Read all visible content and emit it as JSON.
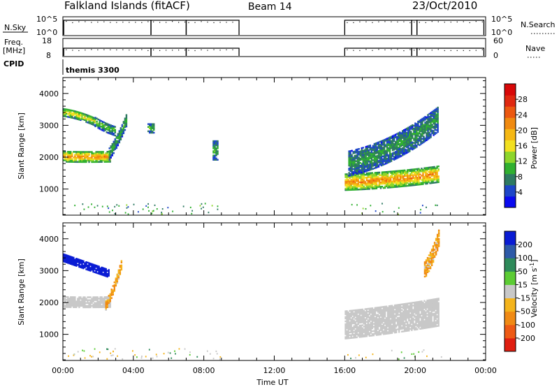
{
  "header": {
    "station": "Falkland Islands (fitACF)",
    "beam": "Beam 14",
    "date": "23/Oct/2010"
  },
  "nsky_panel": {
    "left_label": "N.Sky",
    "left_ticks": [
      "10^5",
      "10^0"
    ],
    "right_label": "N.Search",
    "right_ticks": [
      "10^5",
      "10^0"
    ]
  },
  "freq_panel": {
    "left_label_1": "Freq.",
    "left_label_2": "[MHz]",
    "left_ticks": [
      "18",
      "8"
    ],
    "right_label": "Nave",
    "right_ticks": [
      "60",
      "0"
    ]
  },
  "cpid_panel": {
    "label": "CPID",
    "mode": "themis 3300"
  },
  "x_axis": {
    "label": "Time UT",
    "ticks": [
      "00:00",
      "04:00",
      "08:00",
      "12:00",
      "16:00",
      "20:00",
      "00:00"
    ]
  },
  "power_panel": {
    "ylabel": "Slant Range [km]",
    "yticks": [
      "1000",
      "2000",
      "3000",
      "4000"
    ],
    "cbar_label": "Power [dB]",
    "cbar_ticks": [
      "4",
      "8",
      "12",
      "16",
      "20",
      "24",
      "28"
    ],
    "cbar_colors": [
      "#0a0af0",
      "#1e46c8",
      "#2e7a62",
      "#30b030",
      "#8ed62c",
      "#f2e020",
      "#f5b814",
      "#f08a10",
      "#ec5810",
      "#e02810",
      "#d80808"
    ]
  },
  "velocity_panel": {
    "ylabel": "Slant Range [km]",
    "yticks": [
      "1000",
      "2000",
      "3000",
      "4000"
    ],
    "cbar_label": "Velocity [m s^-1]",
    "cbar_ticks": [
      "200",
      "100",
      "50",
      "15",
      "-15",
      "-50",
      "-100",
      "-200"
    ],
    "cbar_colors": [
      "#0a1cd4",
      "#2e5aa8",
      "#2e8a5a",
      "#5ccc34",
      "#c8c8c8",
      "#f4b41c",
      "#f08a14",
      "#ee5a14",
      "#e01e10"
    ]
  },
  "chart_data": {
    "type": "heatmap",
    "x_range_hours": [
      0,
      24
    ],
    "y_range_km": [
      180,
      4500
    ],
    "data_gaps_hours": [
      [
        10.0,
        16.0
      ]
    ],
    "time_series": {
      "nsky_operating_segments_hours": [
        [
          0.05,
          5.0
        ],
        [
          5.0,
          7.0
        ],
        [
          7.0,
          10.0
        ],
        [
          16.0,
          19.8
        ],
        [
          19.8,
          20.1
        ],
        [
          20.1,
          23.9
        ]
      ],
      "freq_operating_segments_hours": [
        [
          0.05,
          5.0
        ],
        [
          5.0,
          7.0
        ],
        [
          7.0,
          10.0
        ],
        [
          16.0,
          19.8
        ],
        [
          19.8,
          20.1
        ],
        [
          20.1,
          23.9
        ]
      ]
    },
    "power_regions": [
      {
        "t": [
          0.0,
          2.7
        ],
        "r_start": [
          2000,
          1960
        ],
        "r_end": [
          2000,
          2000
        ],
        "width_km": 320,
        "level_db": 22
      },
      {
        "t": [
          0.0,
          1.8
        ],
        "r_start": [
          3400,
          3250
        ],
        "r_end": [
          3400,
          3100
        ],
        "width_km": 260,
        "level_db": 16
      },
      {
        "t": [
          1.8,
          3.0
        ],
        "r_start": [
          3100,
          2900
        ],
        "r_end": [
          2900,
          2800
        ],
        "width_km": 300,
        "level_db": 10
      },
      {
        "t": [
          2.6,
          3.6
        ],
        "r_start": [
          2100,
          2300
        ],
        "r_end": [
          2700,
          3200
        ],
        "width_km": 400,
        "level_db": 9
      },
      {
        "t": [
          4.8,
          5.2
        ],
        "r_start": [
          2900,
          2900
        ],
        "r_end": [
          2900,
          2900
        ],
        "width_km": 300,
        "level_db": 10
      },
      {
        "t": [
          8.5,
          8.8
        ],
        "r_start": [
          2200,
          2200
        ],
        "r_end": [
          2200,
          2200
        ],
        "width_km": 600,
        "level_db": 9
      },
      {
        "t": [
          16.0,
          21.3
        ],
        "r_start": [
          1200,
          1100
        ],
        "r_end": [
          1400,
          1450
        ],
        "width_km": 500,
        "level_db": 22
      },
      {
        "t": [
          16.2,
          21.3
        ],
        "r_start": [
          1800,
          1800
        ],
        "r_end": [
          2400,
          3200
        ],
        "width_km": 800,
        "level_db": 8
      }
    ],
    "velocity_regions": [
      {
        "t": [
          0.0,
          2.7
        ],
        "r_start": [
          2000,
          1960
        ],
        "r_end": [
          2000,
          2000
        ],
        "width_km": 320,
        "velocity": 0
      },
      {
        "t": [
          0.0,
          2.6
        ],
        "r_start": [
          3400,
          3250
        ],
        "r_end": [
          3050,
          2900
        ],
        "width_km": 260,
        "velocity": 180
      },
      {
        "t": [
          2.4,
          3.3
        ],
        "r_start": [
          1900,
          2200
        ],
        "r_end": [
          2500,
          3200
        ],
        "width_km": 300,
        "velocity": -40
      },
      {
        "t": [
          16.0,
          21.3
        ],
        "r_start": [
          1300,
          1200
        ],
        "r_end": [
          1700,
          1700
        ],
        "width_km": 900,
        "velocity": 0
      },
      {
        "t": [
          20.5,
          21.3
        ],
        "r_start": [
          3000,
          3000
        ],
        "r_end": [
          3600,
          4000
        ],
        "width_km": 500,
        "velocity": -40
      }
    ]
  }
}
